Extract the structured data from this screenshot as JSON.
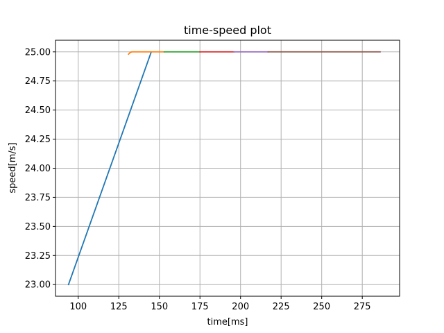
{
  "chart_data": {
    "type": "line",
    "title": "time-speed plot",
    "xlabel": "time[ms]",
    "ylabel": "speed[m/s]",
    "xlim": [
      86,
      298
    ],
    "ylim": [
      22.9,
      25.1
    ],
    "xticks": [
      100,
      125,
      150,
      175,
      200,
      225,
      250,
      275
    ],
    "xtick_labels": [
      "100",
      "125",
      "150",
      "175",
      "200",
      "225",
      "250",
      "275"
    ],
    "yticks": [
      23.0,
      23.25,
      23.5,
      23.75,
      24.0,
      24.25,
      24.5,
      24.75,
      25.0
    ],
    "ytick_labels": [
      "23.00",
      "23.25",
      "23.50",
      "23.75",
      "24.00",
      "24.25",
      "24.50",
      "24.75",
      "25.00"
    ],
    "grid": true,
    "series": [
      {
        "color": "#1f77b4",
        "x": [
          94,
          145
        ],
        "y": [
          23.0,
          25.0
        ]
      },
      {
        "color": "#ff7f0e",
        "x": [
          131,
          132,
          133,
          153
        ],
        "y": [
          24.98,
          24.995,
          25.0,
          25.0
        ]
      },
      {
        "color": "#2ca02c",
        "x": [
          153,
          175
        ],
        "y": [
          25.0,
          25.0
        ]
      },
      {
        "color": "#d62728",
        "x": [
          175,
          196
        ],
        "y": [
          25.0,
          25.0
        ]
      },
      {
        "color": "#9467bd",
        "x": [
          196,
          217
        ],
        "y": [
          25.0,
          25.0
        ]
      },
      {
        "color": "#8c564b",
        "x": [
          217,
          286
        ],
        "y": [
          25.0,
          25.0
        ]
      }
    ]
  }
}
